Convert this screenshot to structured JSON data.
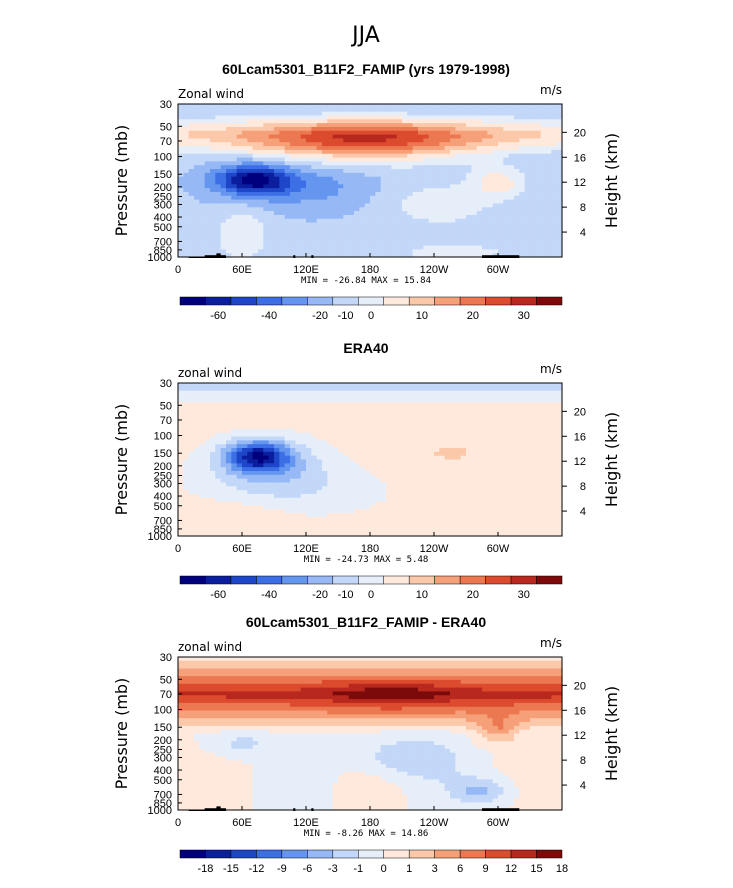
{
  "figure_title": "JJA",
  "colors": {
    "fixed_scale": [
      "#00007f",
      "#0a1e9e",
      "#1e46c8",
      "#3c6ee6",
      "#6496f0",
      "#96b9f5",
      "#c3d7f8",
      "#e6eef9",
      "#ffe9dc",
      "#fcc8aa",
      "#f5a078",
      "#eb7850",
      "#dc4b2d",
      "#b9281e",
      "#7d0a0a"
    ],
    "diff_scale": [
      "#00007f",
      "#0a1e9e",
      "#1e46c8",
      "#3c6ee6",
      "#6496f0",
      "#96b9f5",
      "#c3d7f8",
      "#e6eef9",
      "#ffe9dc",
      "#fcc8aa",
      "#f5a078",
      "#eb7850",
      "#dc4b2d",
      "#b9281e",
      "#7d0a0a"
    ],
    "topography": "#000000"
  },
  "chart_data": [
    {
      "type": "heatmap",
      "title": "60Lcam5301_B11F2_FAMIP (yrs 1979-1998)",
      "left_label": "Zonal wind",
      "right_label": "m/s",
      "ylabel": "Pressure (mb)",
      "y2label": "Height (km)",
      "xticks": [
        "0",
        "60E",
        "120E",
        "180",
        "120W",
        "60W"
      ],
      "xtick_lons": [
        0,
        60,
        120,
        180,
        240,
        300
      ],
      "xlim": [
        0,
        360
      ],
      "yticks": [
        "30",
        "50",
        "70",
        "100",
        "150",
        "200",
        "250",
        "300",
        "400",
        "500",
        "700",
        "850",
        "1000"
      ],
      "yticks_mb": [
        30,
        50,
        70,
        100,
        150,
        200,
        250,
        300,
        400,
        500,
        700,
        850,
        1000
      ],
      "height_ticks": [
        "20",
        "16",
        "12",
        "8",
        "4"
      ],
      "height_ticks_km": [
        20,
        16,
        12,
        8,
        4
      ],
      "stats": "MIN = -26.84   MAX = 15.84",
      "min": -26.84,
      "max": 15.84,
      "colorbar_labels": [
        "-60",
        "-40",
        "-20",
        "-10",
        "0",
        "10",
        "20",
        "30"
      ],
      "topography": true
    },
    {
      "type": "heatmap",
      "title": "ERA40",
      "left_label": "zonal wind",
      "right_label": "m/s",
      "ylabel": "Pressure (mb)",
      "y2label": "Height (km)",
      "xticks": [
        "0",
        "60E",
        "120E",
        "180",
        "120W",
        "60W"
      ],
      "xtick_lons": [
        0,
        60,
        120,
        180,
        240,
        300
      ],
      "xlim": [
        0,
        360
      ],
      "yticks": [
        "30",
        "50",
        "70",
        "100",
        "150",
        "200",
        "250",
        "300",
        "400",
        "500",
        "700",
        "850",
        "1000"
      ],
      "yticks_mb": [
        30,
        50,
        70,
        100,
        150,
        200,
        250,
        300,
        400,
        500,
        700,
        850,
        1000
      ],
      "height_ticks": [
        "20",
        "16",
        "12",
        "8",
        "4"
      ],
      "height_ticks_km": [
        20,
        16,
        12,
        8,
        4
      ],
      "stats": "MIN = -24.73   MAX =   5.48",
      "min": -24.73,
      "max": 5.48,
      "colorbar_labels": [
        "-60",
        "-40",
        "-20",
        "-10",
        "0",
        "10",
        "20",
        "30"
      ],
      "topography": false
    },
    {
      "type": "heatmap",
      "title": "60Lcam5301_B11F2_FAMIP - ERA40",
      "left_label": "zonal wind",
      "right_label": "m/s",
      "ylabel": "Pressure (mb)",
      "y2label": "Height (km)",
      "xticks": [
        "0",
        "60E",
        "120E",
        "180",
        "120W",
        "60W"
      ],
      "xtick_lons": [
        0,
        60,
        120,
        180,
        240,
        300
      ],
      "xlim": [
        0,
        360
      ],
      "yticks": [
        "30",
        "50",
        "70",
        "100",
        "150",
        "200",
        "250",
        "300",
        "400",
        "500",
        "700",
        "850",
        "1000"
      ],
      "yticks_mb": [
        30,
        50,
        70,
        100,
        150,
        200,
        250,
        300,
        400,
        500,
        700,
        850,
        1000
      ],
      "height_ticks": [
        "20",
        "16",
        "12",
        "8",
        "4"
      ],
      "height_ticks_km": [
        20,
        16,
        12,
        8,
        4
      ],
      "stats": "MIN =  -8.26   MAX =  14.86",
      "min": -8.26,
      "max": 14.86,
      "colorbar_labels": [
        "-18",
        "-15",
        "-12",
        "-9",
        "-6",
        "-3",
        "-1",
        "0",
        "1",
        "3",
        "6",
        "9",
        "12",
        "15",
        "18"
      ],
      "topography": true
    }
  ]
}
